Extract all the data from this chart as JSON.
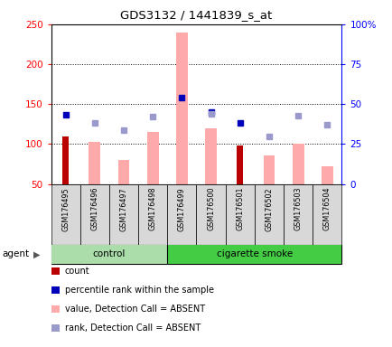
{
  "title": "GDS3132 / 1441839_s_at",
  "samples": [
    "GSM176495",
    "GSM176496",
    "GSM176497",
    "GSM176498",
    "GSM176499",
    "GSM176500",
    "GSM176501",
    "GSM176502",
    "GSM176503",
    "GSM176504"
  ],
  "n_control": 4,
  "n_smoke": 6,
  "ylim_left": [
    50,
    250
  ],
  "ylim_right": [
    0,
    100
  ],
  "yticks_left": [
    50,
    100,
    150,
    200,
    250
  ],
  "yticks_right": [
    0,
    25,
    50,
    75,
    100
  ],
  "ytick_labels_right": [
    "0",
    "25",
    "50",
    "75",
    "100%"
  ],
  "count_values": [
    110,
    null,
    null,
    null,
    null,
    null,
    98,
    null,
    null,
    null
  ],
  "count_color": "#bb0000",
  "pink_bar_values": [
    null,
    103,
    80,
    115,
    240,
    120,
    null,
    86,
    100,
    72
  ],
  "pink_bar_color": "#ffaaaa",
  "dark_blue_squares": [
    137,
    null,
    null,
    null,
    158,
    140,
    127,
    null,
    null,
    null
  ],
  "dark_blue_color": "#0000bb",
  "light_blue_squares": [
    null,
    127,
    117,
    134,
    null,
    138,
    null,
    110,
    136,
    124
  ],
  "light_blue_color": "#9999cc",
  "legend_labels": [
    "count",
    "percentile rank within the sample",
    "value, Detection Call = ABSENT",
    "rank, Detection Call = ABSENT"
  ],
  "legend_colors": [
    "#bb0000",
    "#0000bb",
    "#ffaaaa",
    "#9999cc"
  ],
  "control_color": "#aaddaa",
  "smoke_color": "#44cc44",
  "agent_label": "agent",
  "bar_width": 0.4,
  "count_bar_width": 0.22
}
